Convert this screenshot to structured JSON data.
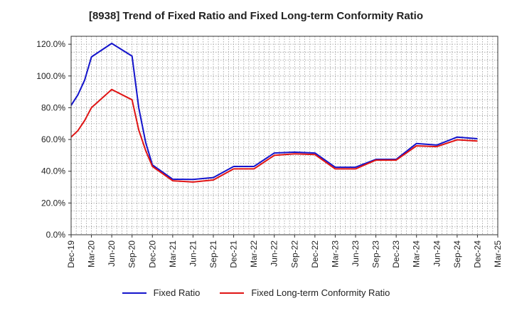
{
  "chart_data": {
    "type": "line",
    "title": "[8938]  Trend of Fixed Ratio and Fixed Long-term Conformity Ratio",
    "xlabel": "",
    "ylabel": "",
    "ylim": [
      0,
      125
    ],
    "y_ticks": [
      "0.0%",
      "20.0%",
      "40.0%",
      "60.0%",
      "80.0%",
      "100.0%",
      "120.0%"
    ],
    "x_tick_labels": [
      "Dec-19",
      "Mar-20",
      "Jun-20",
      "Sep-20",
      "Dec-20",
      "Mar-21",
      "Jun-21",
      "Sep-21",
      "Dec-21",
      "Mar-22",
      "Jun-22",
      "Sep-22",
      "Dec-22",
      "Mar-23",
      "Jun-23",
      "Sep-23",
      "Dec-23",
      "Mar-24",
      "Jun-24",
      "Sep-24",
      "Dec-24",
      "Mar-25"
    ],
    "grid": true,
    "legend_position": "bottom",
    "series": [
      {
        "name": "Fixed Ratio",
        "color": "#1414cc",
        "points": [
          [
            0,
            81.5
          ],
          [
            0.33,
            88
          ],
          [
            0.67,
            97.5
          ],
          [
            1,
            112
          ],
          [
            2,
            120.5
          ],
          [
            3,
            112.5
          ],
          [
            3.33,
            80
          ],
          [
            3.67,
            58
          ],
          [
            4,
            44
          ],
          [
            5,
            35
          ],
          [
            6,
            34.8
          ],
          [
            7,
            36
          ],
          [
            8,
            43
          ],
          [
            9,
            43
          ],
          [
            10,
            51.5
          ],
          [
            11,
            52
          ],
          [
            12,
            51.5
          ],
          [
            13,
            42.5
          ],
          [
            14,
            42.5
          ],
          [
            15,
            47.5
          ],
          [
            16,
            47.5
          ],
          [
            17,
            57.5
          ],
          [
            18,
            56.5
          ],
          [
            19,
            61.5
          ],
          [
            20,
            60.5
          ]
        ]
      },
      {
        "name": "Fixed Long-term Conformity Ratio",
        "color": "#e01414",
        "points": [
          [
            0,
            61.5
          ],
          [
            0.33,
            65.5
          ],
          [
            0.67,
            72
          ],
          [
            1,
            80
          ],
          [
            2,
            91.5
          ],
          [
            3,
            85
          ],
          [
            3.33,
            66
          ],
          [
            3.67,
            53
          ],
          [
            4,
            43
          ],
          [
            5,
            34
          ],
          [
            6,
            33.2
          ],
          [
            7,
            34.5
          ],
          [
            8,
            41.5
          ],
          [
            9,
            41.5
          ],
          [
            10,
            50
          ],
          [
            11,
            51
          ],
          [
            12,
            50.5
          ],
          [
            13,
            41.5
          ],
          [
            14,
            41.5
          ],
          [
            15,
            47
          ],
          [
            16,
            47
          ],
          [
            17,
            56
          ],
          [
            18,
            55.5
          ],
          [
            19,
            59.8
          ],
          [
            20,
            59
          ]
        ]
      }
    ]
  }
}
